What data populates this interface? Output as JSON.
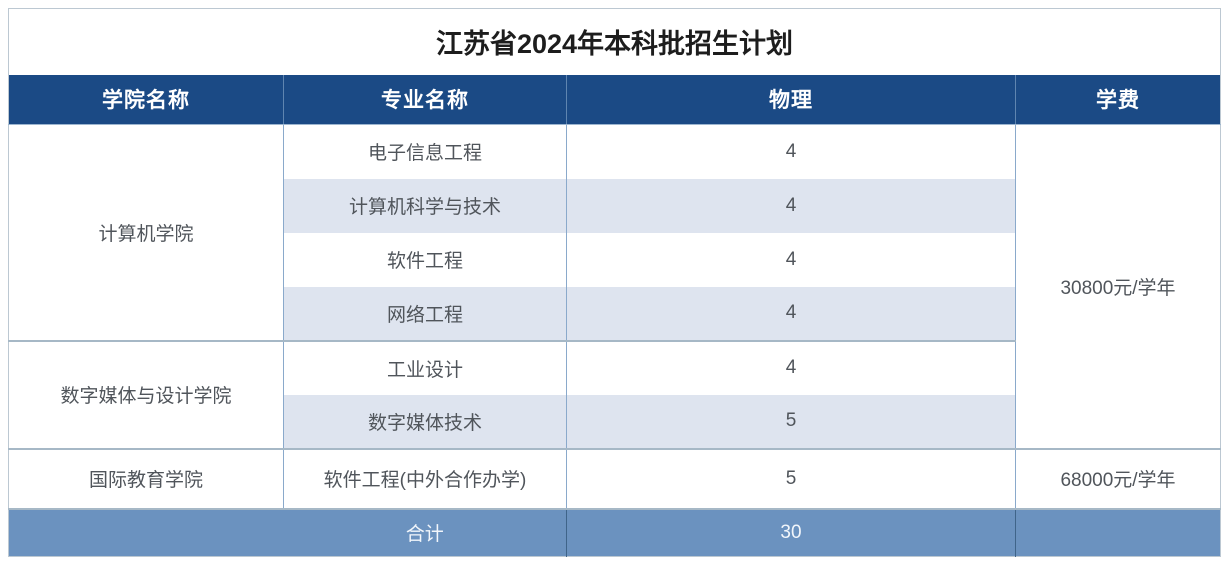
{
  "page": {
    "title": "江苏省2024年本科批招生计划"
  },
  "table": {
    "columns": [
      "学院名称",
      "专业名称",
      "物理",
      "学费"
    ],
    "groups": [
      {
        "college": "计算机学院",
        "majors": [
          {
            "name": "电子信息工程",
            "physics": "4"
          },
          {
            "name": "计算机科学与技术",
            "physics": "4"
          },
          {
            "name": "软件工程",
            "physics": "4"
          },
          {
            "name": "网络工程",
            "physics": "4"
          }
        ]
      },
      {
        "college": "数字媒体与设计学院",
        "majors": [
          {
            "name": "工业设计",
            "physics": "4"
          },
          {
            "name": "数字媒体技术",
            "physics": "5"
          }
        ]
      },
      {
        "college": "国际教育学院",
        "majors": [
          {
            "name": "软件工程(中外合作办学)",
            "physics": "5"
          }
        ]
      }
    ],
    "tuitions": [
      "30800元/学年",
      "68000元/学年"
    ],
    "footer": {
      "label": "合计",
      "total": "30"
    }
  },
  "colors": {
    "header_bg": "#1B4A85",
    "footer_bg": "#6B92BF",
    "stripe_bg": "#DEE4EF",
    "header_text": "#FFFFFF",
    "body_text": "#50555B"
  }
}
